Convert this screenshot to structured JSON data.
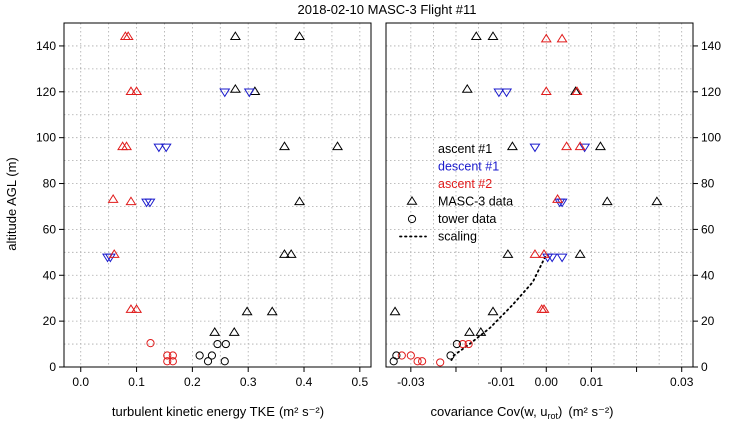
{
  "chart_data": {
    "title": "2018-02-10  MASC-3  Flight #11",
    "ylabel": "altitude AGL (m)",
    "ylim": [
      0,
      150
    ],
    "yticks": [
      0,
      20,
      40,
      60,
      80,
      100,
      120,
      140
    ],
    "panels": [
      {
        "type": "scatter",
        "xlabel": "turbulent kinetic energy TKE",
        "xlabel_units": "(m² s⁻²)",
        "xlim": [
          -0.03,
          0.52
        ],
        "xticks": [
          "0.0",
          "0.1",
          "0.2",
          "0.3",
          "0.4",
          "0.5"
        ],
        "series": [
          {
            "name": "ascent #1",
            "marker": "triangle-up",
            "color": "#000000",
            "points": [
              [
                0.277,
                144
              ],
              [
                0.392,
                144
              ],
              [
                0.277,
                121
              ],
              [
                0.312,
                120
              ],
              [
                0.365,
                96
              ],
              [
                0.46,
                96
              ],
              [
                0.392,
                72
              ],
              [
                0.365,
                49
              ],
              [
                0.377,
                49
              ],
              [
                0.298,
                24
              ],
              [
                0.343,
                24
              ],
              [
                0.24,
                15
              ],
              [
                0.275,
                15
              ]
            ]
          },
          {
            "name": "descent #1",
            "marker": "triangle-down",
            "color": "#1a1acc",
            "points": [
              [
                0.258,
                120
              ],
              [
                0.302,
                120
              ],
              [
                0.14,
                96
              ],
              [
                0.153,
                96
              ],
              [
                0.118,
                72
              ],
              [
                0.124,
                72
              ],
              [
                0.048,
                48
              ],
              [
                0.053,
                48
              ]
            ]
          },
          {
            "name": "ascent #2",
            "marker": "triangle-up",
            "color": "#e01b1b",
            "points": [
              [
                0.08,
                144
              ],
              [
                0.085,
                144
              ],
              [
                0.09,
                120
              ],
              [
                0.1,
                120
              ],
              [
                0.075,
                96
              ],
              [
                0.082,
                96
              ],
              [
                0.058,
                73
              ],
              [
                0.09,
                72
              ],
              [
                0.06,
                49
              ],
              [
                0.09,
                25
              ],
              [
                0.1,
                25
              ]
            ]
          },
          {
            "name": "tower data (ascent #2)",
            "marker": "circle",
            "color": "#e01b1b",
            "points": [
              [
                0.125,
                10.4
              ],
              [
                0.155,
                5
              ],
              [
                0.165,
                5
              ],
              [
                0.155,
                2.5
              ],
              [
                0.165,
                2.5
              ]
            ]
          },
          {
            "name": "tower data",
            "marker": "circle",
            "color": "#000000",
            "points": [
              [
                0.213,
                5
              ],
              [
                0.235,
                5
              ],
              [
                0.245,
                10
              ],
              [
                0.26,
                10
              ],
              [
                0.228,
                2.5
              ],
              [
                0.258,
                2.5
              ]
            ]
          }
        ]
      },
      {
        "type": "scatter",
        "xlabel": "covariance Cov(w, u",
        "xlabel_sub": "rot",
        "xlabel_close": ")",
        "xlabel_units": "(m² s⁻²)",
        "xlim": [
          -0.0355,
          0.0325
        ],
        "xticks": [
          "-0.03",
          "-0.01",
          "0.00",
          "0.01",
          "0.03"
        ],
        "xtick_values": [
          -0.03,
          -0.01,
          0.0,
          0.01,
          0.03
        ],
        "minor_xticks": [
          -0.02,
          0.02
        ],
        "series": [
          {
            "name": "ascent #1",
            "marker": "triangle-up",
            "color": "#000000",
            "points": [
              [
                -0.0155,
                144
              ],
              [
                -0.0118,
                144
              ],
              [
                -0.0175,
                121
              ],
              [
                0.0065,
                120
              ],
              [
                -0.0075,
                96
              ],
              [
                0.012,
                96
              ],
              [
                0.0135,
                72
              ],
              [
                0.0245,
                72
              ],
              [
                -0.0085,
                49
              ],
              [
                0.0075,
                49
              ],
              [
                -0.0335,
                24
              ],
              [
                -0.0118,
                24
              ],
              [
                -0.017,
                15
              ],
              [
                -0.0145,
                15
              ]
            ]
          },
          {
            "name": "descent #1",
            "marker": "triangle-down",
            "color": "#1a1acc",
            "points": [
              [
                -0.0105,
                120
              ],
              [
                -0.0088,
                120
              ],
              [
                -0.0025,
                96
              ],
              [
                0.0085,
                96
              ],
              [
                0.003,
                72
              ],
              [
                0.0035,
                72
              ],
              [
                0.0003,
                48
              ],
              [
                0.0013,
                48
              ],
              [
                0.0035,
                48
              ]
            ]
          },
          {
            "name": "ascent #2",
            "marker": "triangle-up",
            "color": "#e01b1b",
            "points": [
              [
                0.0,
                143
              ],
              [
                0.0035,
                143
              ],
              [
                0.0,
                120
              ],
              [
                0.0068,
                120
              ],
              [
                0.0045,
                96
              ],
              [
                0.0075,
                96
              ],
              [
                0.0025,
                73
              ],
              [
                -0.0025,
                49
              ],
              [
                -0.0005,
                49
              ],
              [
                -0.001,
                25
              ],
              [
                -0.0005,
                25
              ]
            ]
          },
          {
            "name": "tower data (ascent #2)",
            "marker": "circle",
            "color": "#e01b1b",
            "points": [
              [
                -0.032,
                5
              ],
              [
                -0.03,
                5
              ],
              [
                -0.0185,
                10
              ],
              [
                -0.0172,
                10
              ],
              [
                -0.0285,
                2.5
              ],
              [
                -0.0275,
                2.5
              ],
              [
                -0.0235,
                2
              ]
            ]
          },
          {
            "name": "tower data",
            "marker": "circle",
            "color": "#000000",
            "points": [
              [
                -0.0332,
                5
              ],
              [
                -0.0198,
                10
              ],
              [
                -0.0212,
                5
              ],
              [
                -0.0338,
                2.5
              ]
            ]
          }
        ],
        "scaling": [
          [
            -0.021,
            3
          ],
          [
            -0.0205,
            5
          ],
          [
            -0.017,
            10
          ],
          [
            -0.0125,
            17
          ],
          [
            -0.0075,
            27
          ],
          [
            -0.003,
            37
          ],
          [
            0.0,
            49
          ]
        ],
        "legend": {
          "position": "center",
          "entries": [
            {
              "label": "ascent #1",
              "color": "#000000",
              "symbol": "none"
            },
            {
              "label": "descent #1",
              "color": "#1a1acc",
              "symbol": "none"
            },
            {
              "label": "ascent #2",
              "color": "#e01b1b",
              "symbol": "none"
            },
            {
              "label": "MASC-3 data",
              "color": "#000000",
              "symbol": "triangle-up"
            },
            {
              "label": "tower data",
              "color": "#000000",
              "symbol": "circle"
            },
            {
              "label": "scaling",
              "color": "#000000",
              "symbol": "dotted-line"
            }
          ]
        }
      }
    ]
  }
}
